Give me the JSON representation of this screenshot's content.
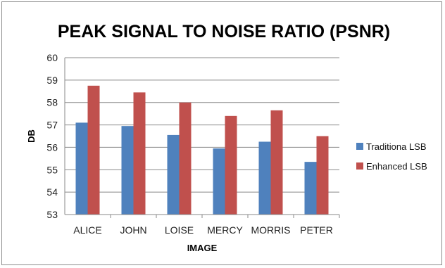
{
  "chart_data": {
    "type": "bar",
    "title": "PEAK SIGNAL TO NOISE RATIO (PSNR)",
    "xlabel": "IMAGE",
    "ylabel": "DB",
    "categories": [
      "ALICE",
      "JOHN",
      "LOISE",
      "MERCY",
      "MORRIS",
      "PETER"
    ],
    "series": [
      {
        "name": "Traditiona LSB",
        "values": [
          57.1,
          56.95,
          56.55,
          55.95,
          56.25,
          55.35
        ],
        "color": "#4f81bd"
      },
      {
        "name": "Enhanced LSB",
        "values": [
          58.75,
          58.45,
          58.0,
          57.4,
          57.65,
          56.5
        ],
        "color": "#c0504d"
      }
    ],
    "ylim": [
      53,
      60
    ],
    "yticks": [
      53,
      54,
      55,
      56,
      57,
      58,
      59,
      60
    ],
    "grid": true,
    "legend_position": "right"
  }
}
